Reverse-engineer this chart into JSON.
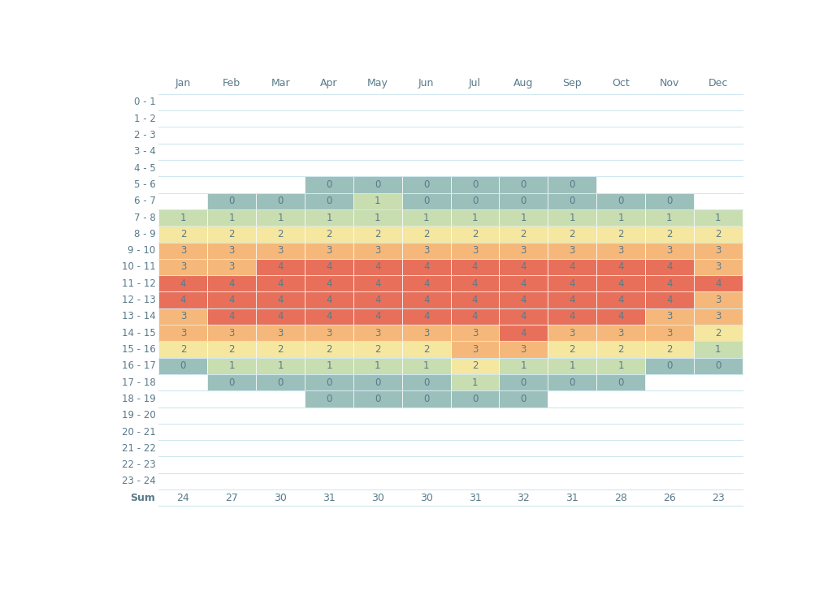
{
  "months": [
    "Jan",
    "Feb",
    "Mar",
    "Apr",
    "May",
    "Jun",
    "Jul",
    "Aug",
    "Sep",
    "Oct",
    "Nov",
    "Dec"
  ],
  "hours": [
    "0 - 1",
    "1 - 2",
    "2 - 3",
    "3 - 4",
    "4 - 5",
    "5 - 6",
    "6 - 7",
    "7 - 8",
    "8 - 9",
    "9 - 10",
    "10 - 11",
    "11 - 12",
    "12 - 13",
    "13 - 14",
    "14 - 15",
    "15 - 16",
    "16 - 17",
    "17 - 18",
    "18 - 19",
    "19 - 20",
    "20 - 21",
    "21 - 22",
    "22 - 23",
    "23 - 24"
  ],
  "sums": [
    24,
    27,
    30,
    31,
    30,
    30,
    31,
    32,
    31,
    28,
    26,
    23
  ],
  "grid": [
    [
      null,
      null,
      null,
      null,
      null,
      null,
      null,
      null,
      null,
      null,
      null,
      null
    ],
    [
      null,
      null,
      null,
      null,
      null,
      null,
      null,
      null,
      null,
      null,
      null,
      null
    ],
    [
      null,
      null,
      null,
      null,
      null,
      null,
      null,
      null,
      null,
      null,
      null,
      null
    ],
    [
      null,
      null,
      null,
      null,
      null,
      null,
      null,
      null,
      null,
      null,
      null,
      null
    ],
    [
      null,
      null,
      null,
      null,
      null,
      null,
      null,
      null,
      null,
      null,
      null,
      null
    ],
    [
      null,
      null,
      null,
      0,
      0,
      0,
      0,
      0,
      0,
      null,
      null,
      null
    ],
    [
      null,
      0,
      0,
      0,
      1,
      0,
      0,
      0,
      0,
      0,
      0,
      null
    ],
    [
      1,
      1,
      1,
      1,
      1,
      1,
      1,
      1,
      1,
      1,
      1,
      1
    ],
    [
      2,
      2,
      2,
      2,
      2,
      2,
      2,
      2,
      2,
      2,
      2,
      2
    ],
    [
      3,
      3,
      3,
      3,
      3,
      3,
      3,
      3,
      3,
      3,
      3,
      3
    ],
    [
      3,
      3,
      4,
      4,
      4,
      4,
      4,
      4,
      4,
      4,
      4,
      3
    ],
    [
      4,
      4,
      4,
      4,
      4,
      4,
      4,
      4,
      4,
      4,
      4,
      4
    ],
    [
      4,
      4,
      4,
      4,
      4,
      4,
      4,
      4,
      4,
      4,
      4,
      3
    ],
    [
      3,
      4,
      4,
      4,
      4,
      4,
      4,
      4,
      4,
      4,
      3,
      3
    ],
    [
      3,
      3,
      3,
      3,
      3,
      3,
      3,
      4,
      3,
      3,
      3,
      2
    ],
    [
      2,
      2,
      2,
      2,
      2,
      2,
      3,
      3,
      2,
      2,
      2,
      1
    ],
    [
      0,
      1,
      1,
      1,
      1,
      1,
      2,
      1,
      1,
      1,
      0,
      0
    ],
    [
      null,
      0,
      0,
      0,
      0,
      0,
      1,
      0,
      0,
      0,
      null,
      null
    ],
    [
      null,
      null,
      null,
      0,
      0,
      0,
      0,
      0,
      null,
      null,
      null,
      null
    ],
    [
      null,
      null,
      null,
      null,
      null,
      null,
      null,
      null,
      null,
      null,
      null,
      null
    ],
    [
      null,
      null,
      null,
      null,
      null,
      null,
      null,
      null,
      null,
      null,
      null,
      null
    ],
    [
      null,
      null,
      null,
      null,
      null,
      null,
      null,
      null,
      null,
      null,
      null,
      null
    ],
    [
      null,
      null,
      null,
      null,
      null,
      null,
      null,
      null,
      null,
      null,
      null,
      null
    ],
    [
      null,
      null,
      null,
      null,
      null,
      null,
      null,
      null,
      null,
      null,
      null,
      null
    ]
  ],
  "color_map": {
    "0": "#9bbfba",
    "1": "#c8ddb0",
    "2": "#f5e6a0",
    "3": "#f5b87a",
    "4": "#e8705a"
  },
  "text_color": "#5a7a8a",
  "sum_label": "Sum",
  "background_color": "#ffffff",
  "grid_line_color": "#d0e8f0",
  "header_color": "#5a7a8a",
  "row_label_color": "#5a7a8a"
}
